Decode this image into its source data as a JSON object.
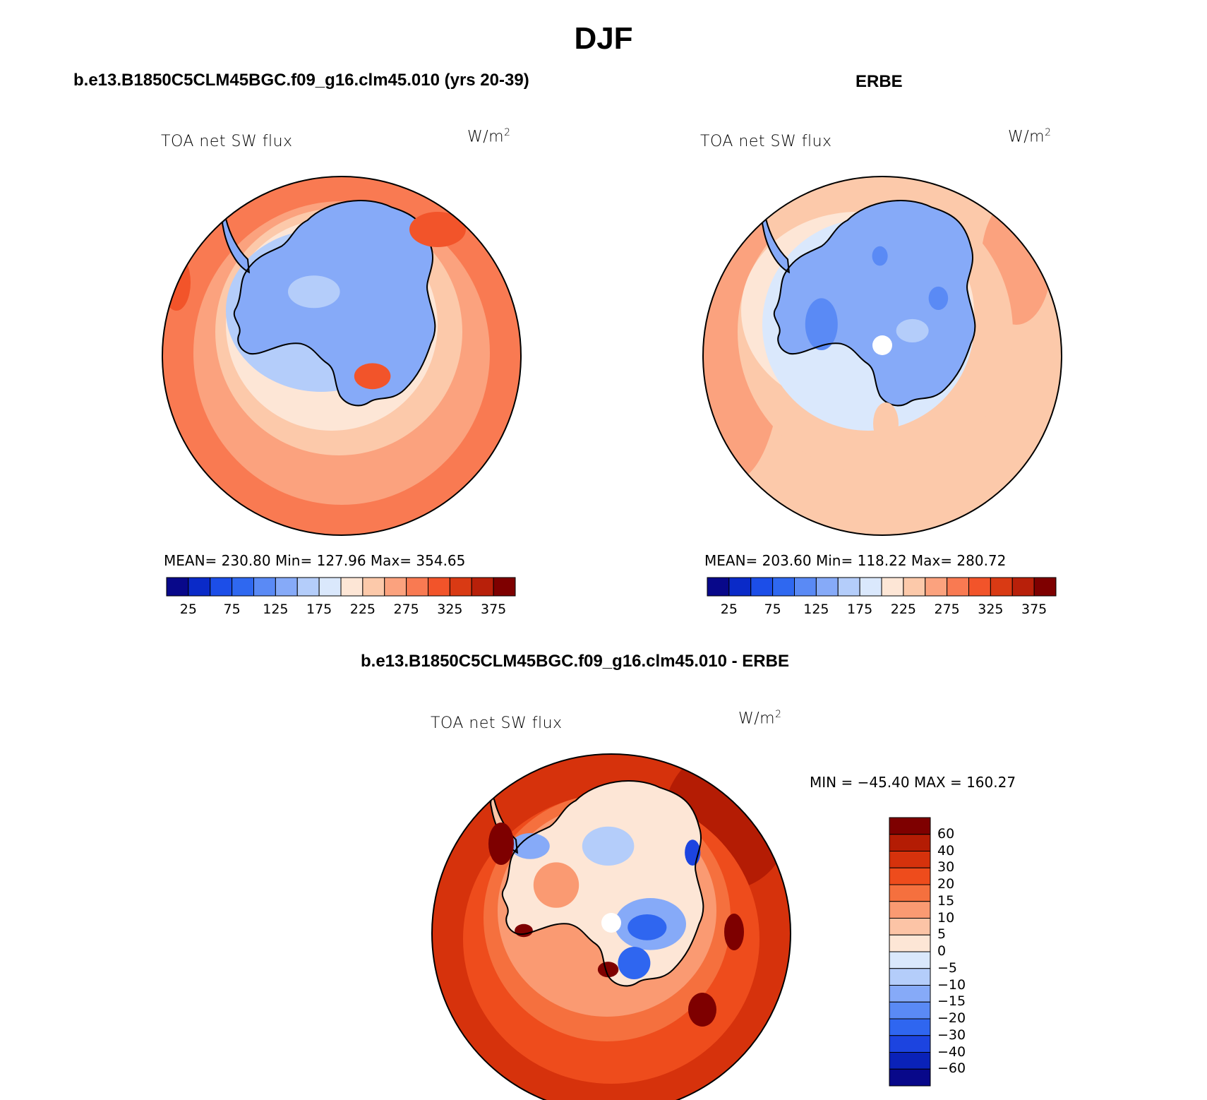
{
  "title": "DJF",
  "panels": [
    {
      "id": "model",
      "header": "b.e13.B1850C5CLM45BGC.f09_g16.clm45.010 (yrs 20-39)",
      "variable": "TOA net SW flux",
      "units_base": "W/m",
      "units_exp": "2",
      "stats": "MEAN= 230.80   Min= 127.96   Max= 354.65",
      "colorbar_labels": [
        "25",
        "75",
        "125",
        "175",
        "225",
        "275",
        "325",
        "375"
      ]
    },
    {
      "id": "obs",
      "header": "ERBE",
      "variable": "TOA net SW flux",
      "units_base": "W/m",
      "units_exp": "2",
      "stats": "MEAN= 203.60   Min= 118.22   Max= 280.72",
      "colorbar_labels": [
        "25",
        "75",
        "125",
        "175",
        "225",
        "275",
        "325",
        "375"
      ]
    },
    {
      "id": "diff",
      "header": "b.e13.B1850C5CLM45BGC.f09_g16.clm45.010 - ERBE",
      "variable": "TOA net SW flux",
      "units_base": "W/m",
      "units_exp": "2",
      "stats": "MIN = −45.40 MAX = 160.27",
      "colorbar_labels": [
        "60",
        "40",
        "30",
        "20",
        "15",
        "10",
        "5",
        "0",
        "−5",
        "−10",
        "−15",
        "−20",
        "−30",
        "−40",
        "−60"
      ]
    }
  ],
  "colors": {
    "abs_scale": [
      "#08088a",
      "#0a2ac8",
      "#1c4ee8",
      "#2f68f0",
      "#5a8af5",
      "#86aaf8",
      "#b4cdfa",
      "#dae8fc",
      "#fde6d6",
      "#fcc9aa",
      "#fba27e",
      "#f97a52",
      "#f2542a",
      "#d93a14",
      "#b8200a",
      "#7e0000"
    ],
    "diff_scale": [
      "#08088a",
      "#0a22b8",
      "#1c44e0",
      "#2f66f0",
      "#5a8af5",
      "#86aaf8",
      "#b4cdfa",
      "#dae8fc",
      "#fde6d6",
      "#fcc4a6",
      "#fa9a72",
      "#f5703e",
      "#ee4c1c",
      "#d6320c",
      "#b41c04",
      "#7e0000"
    ]
  }
}
